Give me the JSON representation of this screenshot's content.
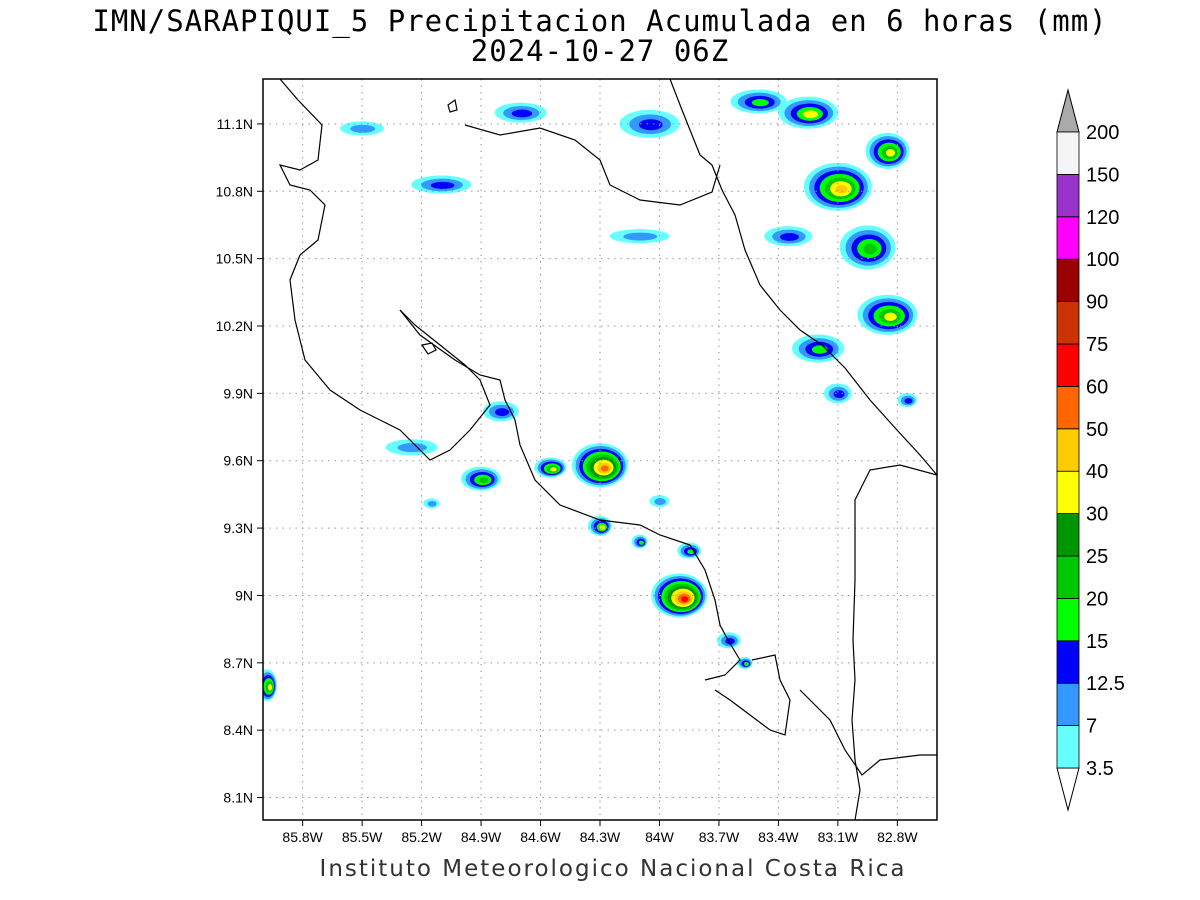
{
  "title_line1": "IMN/SARAPIQUI_5 Precipitacion Acumulada en 6 horas (mm)",
  "title_line2": "2024-10-27 06Z",
  "credit": "Instituto Meteorologico Nacional Costa Rica",
  "map": {
    "lon_range": [
      -86.0,
      -82.6
    ],
    "lat_range": [
      8.0,
      11.3
    ],
    "x_ticks": [
      {
        "label": "85.8W",
        "lon": -85.8
      },
      {
        "label": "85.5W",
        "lon": -85.5
      },
      {
        "label": "85.2W",
        "lon": -85.2
      },
      {
        "label": "84.9W",
        "lon": -84.9
      },
      {
        "label": "84.6W",
        "lon": -84.6
      },
      {
        "label": "84.3W",
        "lon": -84.3
      },
      {
        "label": "84W",
        "lon": -84.0
      },
      {
        "label": "83.7W",
        "lon": -83.7
      },
      {
        "label": "83.4W",
        "lon": -83.4
      },
      {
        "label": "83.1W",
        "lon": -83.1
      },
      {
        "label": "82.8W",
        "lon": -82.8
      }
    ],
    "y_ticks": [
      {
        "label": "11.1N",
        "lat": 11.1
      },
      {
        "label": "10.8N",
        "lat": 10.8
      },
      {
        "label": "10.5N",
        "lat": 10.5
      },
      {
        "label": "10.2N",
        "lat": 10.2
      },
      {
        "label": "9.9N",
        "lat": 9.9
      },
      {
        "label": "9.6N",
        "lat": 9.6
      },
      {
        "label": "9.3N",
        "lat": 9.3
      },
      {
        "label": "9N",
        "lat": 9.0
      },
      {
        "label": "8.7N",
        "lat": 8.7
      },
      {
        "label": "8.4N",
        "lat": 8.4
      },
      {
        "label": "8.1N",
        "lat": 8.1
      }
    ],
    "grid_lines": true
  },
  "colorbar": {
    "levels": [
      {
        "label": "3.5",
        "color": "#66ffff"
      },
      {
        "label": "7",
        "color": "#3399ff"
      },
      {
        "label": "12.5",
        "color": "#0000ff"
      },
      {
        "label": "15",
        "color": "#00ff00"
      },
      {
        "label": "20",
        "color": "#00c800"
      },
      {
        "label": "25",
        "color": "#009600"
      },
      {
        "label": "30",
        "color": "#ffff00"
      },
      {
        "label": "40",
        "color": "#ffcc00"
      },
      {
        "label": "50",
        "color": "#ff6600"
      },
      {
        "label": "60",
        "color": "#ff0000"
      },
      {
        "label": "75",
        "color": "#cc3300"
      },
      {
        "label": "90",
        "color": "#990000"
      },
      {
        "label": "100",
        "color": "#ff00ff"
      },
      {
        "label": "120",
        "color": "#9933cc"
      },
      {
        "label": "150",
        "color": "#f5f5f5"
      },
      {
        "label": "200",
        "color": "#aaaaaa"
      }
    ],
    "low_end_color": "#ffffff",
    "high_end_color": "#aaaaaa"
  },
  "precip_cells": [
    {
      "lon": -83.1,
      "lat": 10.82,
      "rx": 34,
      "ry": 24,
      "levels": [
        0,
        1,
        2,
        3,
        4,
        6,
        7
      ]
    },
    {
      "lon": -82.85,
      "lat": 10.98,
      "rx": 22,
      "ry": 18,
      "levels": [
        0,
        1,
        2,
        3,
        4,
        6
      ]
    },
    {
      "lon": -82.95,
      "lat": 10.55,
      "rx": 28,
      "ry": 22,
      "levels": [
        0,
        1,
        2,
        3,
        4
      ]
    },
    {
      "lon": -82.85,
      "lat": 10.25,
      "rx": 30,
      "ry": 20,
      "levels": [
        0,
        1,
        2,
        3,
        4,
        6
      ]
    },
    {
      "lon": -83.25,
      "lat": 11.15,
      "rx": 30,
      "ry": 16,
      "levels": [
        0,
        1,
        2,
        3,
        6
      ]
    },
    {
      "lon": -83.5,
      "lat": 11.2,
      "rx": 28,
      "ry": 12,
      "levels": [
        0,
        1,
        2,
        3
      ]
    },
    {
      "lon": -83.2,
      "lat": 10.1,
      "rx": 26,
      "ry": 14,
      "levels": [
        0,
        1,
        2,
        3
      ]
    },
    {
      "lon": -83.35,
      "lat": 10.6,
      "rx": 24,
      "ry": 10,
      "levels": [
        0,
        1,
        2
      ]
    },
    {
      "lon": -84.3,
      "lat": 9.58,
      "rx": 28,
      "ry": 22,
      "levels": [
        0,
        1,
        2,
        3,
        4,
        5,
        6,
        7,
        8
      ]
    },
    {
      "lon": -84.55,
      "lat": 9.57,
      "rx": 16,
      "ry": 10,
      "levels": [
        0,
        1,
        2,
        3,
        4,
        6
      ]
    },
    {
      "lon": -84.9,
      "lat": 9.52,
      "rx": 20,
      "ry": 12,
      "levels": [
        0,
        1,
        2,
        3,
        4
      ]
    },
    {
      "lon": -84.3,
      "lat": 9.31,
      "rx": 12,
      "ry": 10,
      "levels": [
        0,
        1,
        2,
        3,
        6
      ]
    },
    {
      "lon": -83.9,
      "lat": 9.0,
      "rx": 28,
      "ry": 22,
      "levels": [
        0,
        1,
        2,
        3,
        4,
        5,
        6,
        7,
        8,
        9
      ]
    },
    {
      "lon": -83.85,
      "lat": 9.2,
      "rx": 12,
      "ry": 8,
      "levels": [
        0,
        1,
        2,
        3
      ]
    },
    {
      "lon": -84.1,
      "lat": 9.24,
      "rx": 8,
      "ry": 7,
      "levels": [
        0,
        1,
        2,
        3
      ]
    },
    {
      "lon": -83.65,
      "lat": 8.8,
      "rx": 12,
      "ry": 8,
      "levels": [
        0,
        1,
        2
      ]
    },
    {
      "lon": -83.57,
      "lat": 8.7,
      "rx": 8,
      "ry": 6,
      "levels": [
        0,
        1,
        2,
        3
      ]
    },
    {
      "lon": -85.98,
      "lat": 8.6,
      "rx": 10,
      "ry": 16,
      "levels": [
        0,
        1,
        2,
        3,
        4,
        6
      ]
    },
    {
      "lon": -84.7,
      "lat": 11.15,
      "rx": 26,
      "ry": 10,
      "levels": [
        0,
        1,
        2
      ]
    },
    {
      "lon": -84.05,
      "lat": 11.1,
      "rx": 30,
      "ry": 14,
      "levels": [
        0,
        1,
        2
      ]
    },
    {
      "lon": -85.1,
      "lat": 10.83,
      "rx": 30,
      "ry": 9,
      "levels": [
        0,
        1,
        2
      ]
    },
    {
      "lon": -84.1,
      "lat": 10.6,
      "rx": 30,
      "ry": 7,
      "levels": [
        0,
        1
      ]
    },
    {
      "lon": -84.8,
      "lat": 9.82,
      "rx": 18,
      "ry": 10,
      "levels": [
        0,
        1,
        2
      ]
    },
    {
      "lon": -85.25,
      "lat": 9.66,
      "rx": 26,
      "ry": 8,
      "levels": [
        0,
        1
      ]
    },
    {
      "lon": -85.5,
      "lat": 11.08,
      "rx": 22,
      "ry": 7,
      "levels": [
        0,
        1
      ]
    },
    {
      "lon": -82.75,
      "lat": 9.87,
      "rx": 10,
      "ry": 7,
      "levels": [
        0,
        1,
        2
      ]
    },
    {
      "lon": -83.1,
      "lat": 9.9,
      "rx": 14,
      "ry": 10,
      "levels": [
        0,
        1,
        2
      ]
    },
    {
      "lon": -84.0,
      "lat": 9.42,
      "rx": 10,
      "ry": 6,
      "levels": [
        0,
        1
      ]
    },
    {
      "lon": -85.15,
      "lat": 9.41,
      "rx": 8,
      "ry": 5,
      "levels": [
        0,
        1
      ]
    }
  ]
}
